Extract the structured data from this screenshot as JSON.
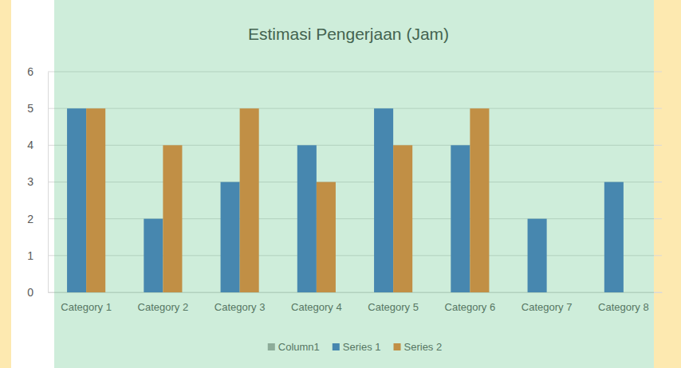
{
  "chart_data": {
    "type": "bar",
    "title": "Estimasi Pengerjaan (Jam)",
    "categories": [
      "Category 1",
      "Category 2",
      "Category 3",
      "Category 4",
      "Category 5",
      "Category 6",
      "Category 7",
      "Category 8"
    ],
    "series": [
      {
        "name": "Column1",
        "color": "#a5a5a5",
        "values": [
          null,
          null,
          null,
          null,
          null,
          null,
          null,
          null
        ]
      },
      {
        "name": "Series 1",
        "color": "#4472c4",
        "values": [
          5,
          2,
          3,
          4,
          5,
          4,
          2,
          3
        ]
      },
      {
        "name": "Series 2",
        "color": "#ed7d31",
        "values": [
          5,
          4,
          5,
          3,
          4,
          5,
          null,
          null
        ]
      }
    ],
    "ylim": [
      0,
      6
    ],
    "yticks": [
      0,
      1,
      2,
      3,
      4,
      5,
      6
    ],
    "grid": true,
    "legend": "bottom"
  }
}
